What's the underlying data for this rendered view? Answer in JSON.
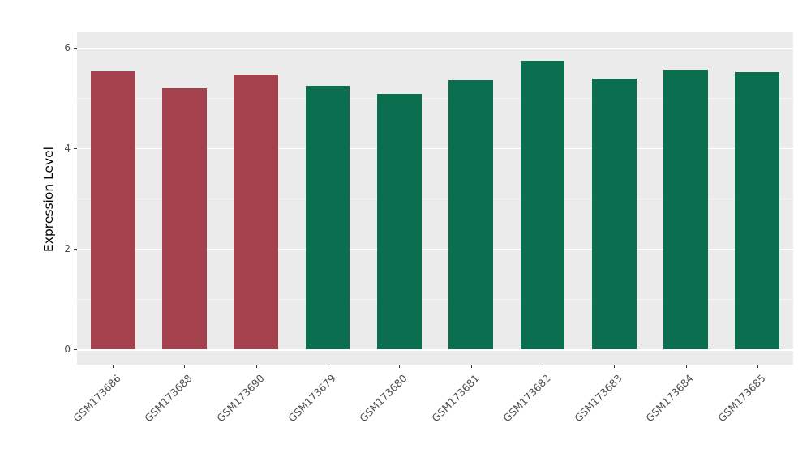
{
  "chart_data": {
    "type": "bar",
    "title": "",
    "xlabel": "",
    "ylabel": "Expression Level",
    "ylim": [
      0,
      6
    ],
    "yticks": [
      0,
      2,
      4,
      6
    ],
    "ytick_labels": [
      "0",
      "2",
      "4",
      "6"
    ],
    "minor_gridlines": [
      1,
      3,
      5
    ],
    "grid": true,
    "legend_position": "none",
    "panel_background": "#EBEBEB",
    "major_grid_color": "#FFFFFF",
    "categories": [
      "GSM173686",
      "GSM173688",
      "GSM173690",
      "GSM173679",
      "GSM173680",
      "GSM173681",
      "GSM173682",
      "GSM173683",
      "GSM173684",
      "GSM173685"
    ],
    "values": [
      5.52,
      5.19,
      5.46,
      5.24,
      5.08,
      5.35,
      5.73,
      5.38,
      5.56,
      5.51
    ],
    "bar_colors": [
      "#A3424D",
      "#A3424D",
      "#A3424D",
      "#0B6E4E",
      "#0B6E4E",
      "#0B6E4E",
      "#0B6E4E",
      "#0B6E4E",
      "#0B6E4E",
      "#0B6E4E"
    ],
    "group_colors": {
      "group1": "#A3424D",
      "group2": "#0B6E4E"
    }
  }
}
